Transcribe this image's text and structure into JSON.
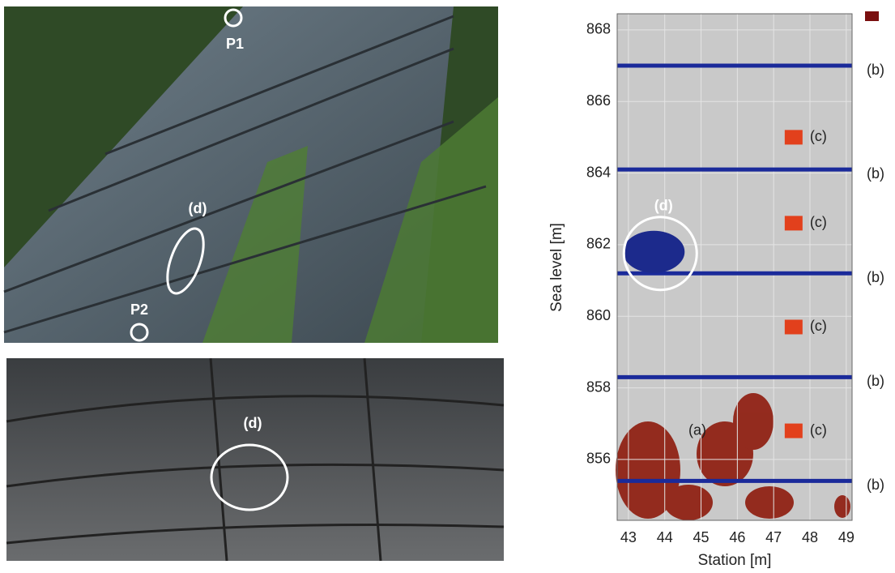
{
  "photos": {
    "top": {
      "labels": [
        "P1",
        "P2",
        "(d)"
      ]
    },
    "bottom": {
      "labels": [
        "(d)"
      ]
    }
  },
  "chart_data": {
    "type": "anomaly-map",
    "xlabel": "Station [m]",
    "ylabel": "Sea level [m]",
    "xlim": [
      42.69,
      49.16
    ],
    "ylim": [
      854.3,
      868.45
    ],
    "xticks": [
      43,
      44,
      45,
      46,
      47,
      48,
      49
    ],
    "yticks": [
      856,
      858,
      860,
      862,
      864,
      866,
      868
    ],
    "grid": true,
    "bands": {
      "label": "(b)",
      "color": "#1a2a9a",
      "y": [
        867.0,
        864.1,
        861.2,
        858.3,
        855.4
      ]
    },
    "squares": {
      "label": "(c)",
      "color": "#e2401c",
      "x": 47.55,
      "y": [
        865.0,
        862.6,
        859.7,
        856.8
      ]
    },
    "cavity": {
      "label": "(d)",
      "color": "#1c2a8c",
      "x": 43.7,
      "y": 861.8
    },
    "region": {
      "label": "(a)",
      "x": 44.9,
      "y": 856.8
    }
  }
}
